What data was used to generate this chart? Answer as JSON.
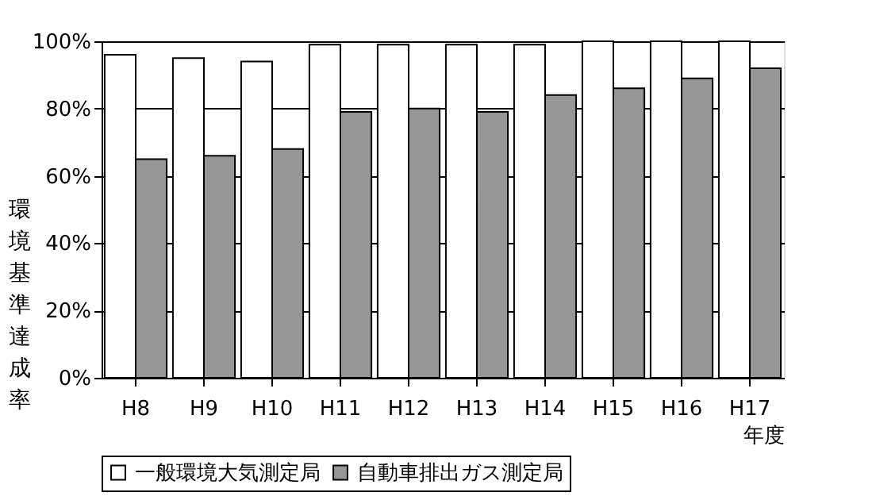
{
  "chart_data": {
    "type": "bar",
    "xlabel": "年度",
    "ylabel": "環境基準達成率",
    "categories": [
      "H8",
      "H9",
      "H10",
      "H11",
      "H12",
      "H13",
      "H14",
      "H15",
      "H16",
      "H17"
    ],
    "series": [
      {
        "name": "一般環境大気測定局",
        "color": "#ffffff",
        "values": [
          96,
          95,
          94,
          99,
          99,
          99,
          99,
          100,
          100,
          100
        ]
      },
      {
        "name": "自動車排出ガス測定局",
        "color": "#969696",
        "values": [
          65,
          66,
          68,
          79,
          80,
          79,
          84,
          86,
          89,
          92
        ]
      }
    ],
    "ylim": [
      0,
      100
    ],
    "yticks": [
      {
        "value": 0,
        "label": "0%"
      },
      {
        "value": 20,
        "label": "20%"
      },
      {
        "value": 40,
        "label": "40%"
      },
      {
        "value": 60,
        "label": "60%"
      },
      {
        "value": 80,
        "label": "80%"
      },
      {
        "value": 100,
        "label": "100%"
      }
    ],
    "grid": "y",
    "legend": "bottom"
  }
}
